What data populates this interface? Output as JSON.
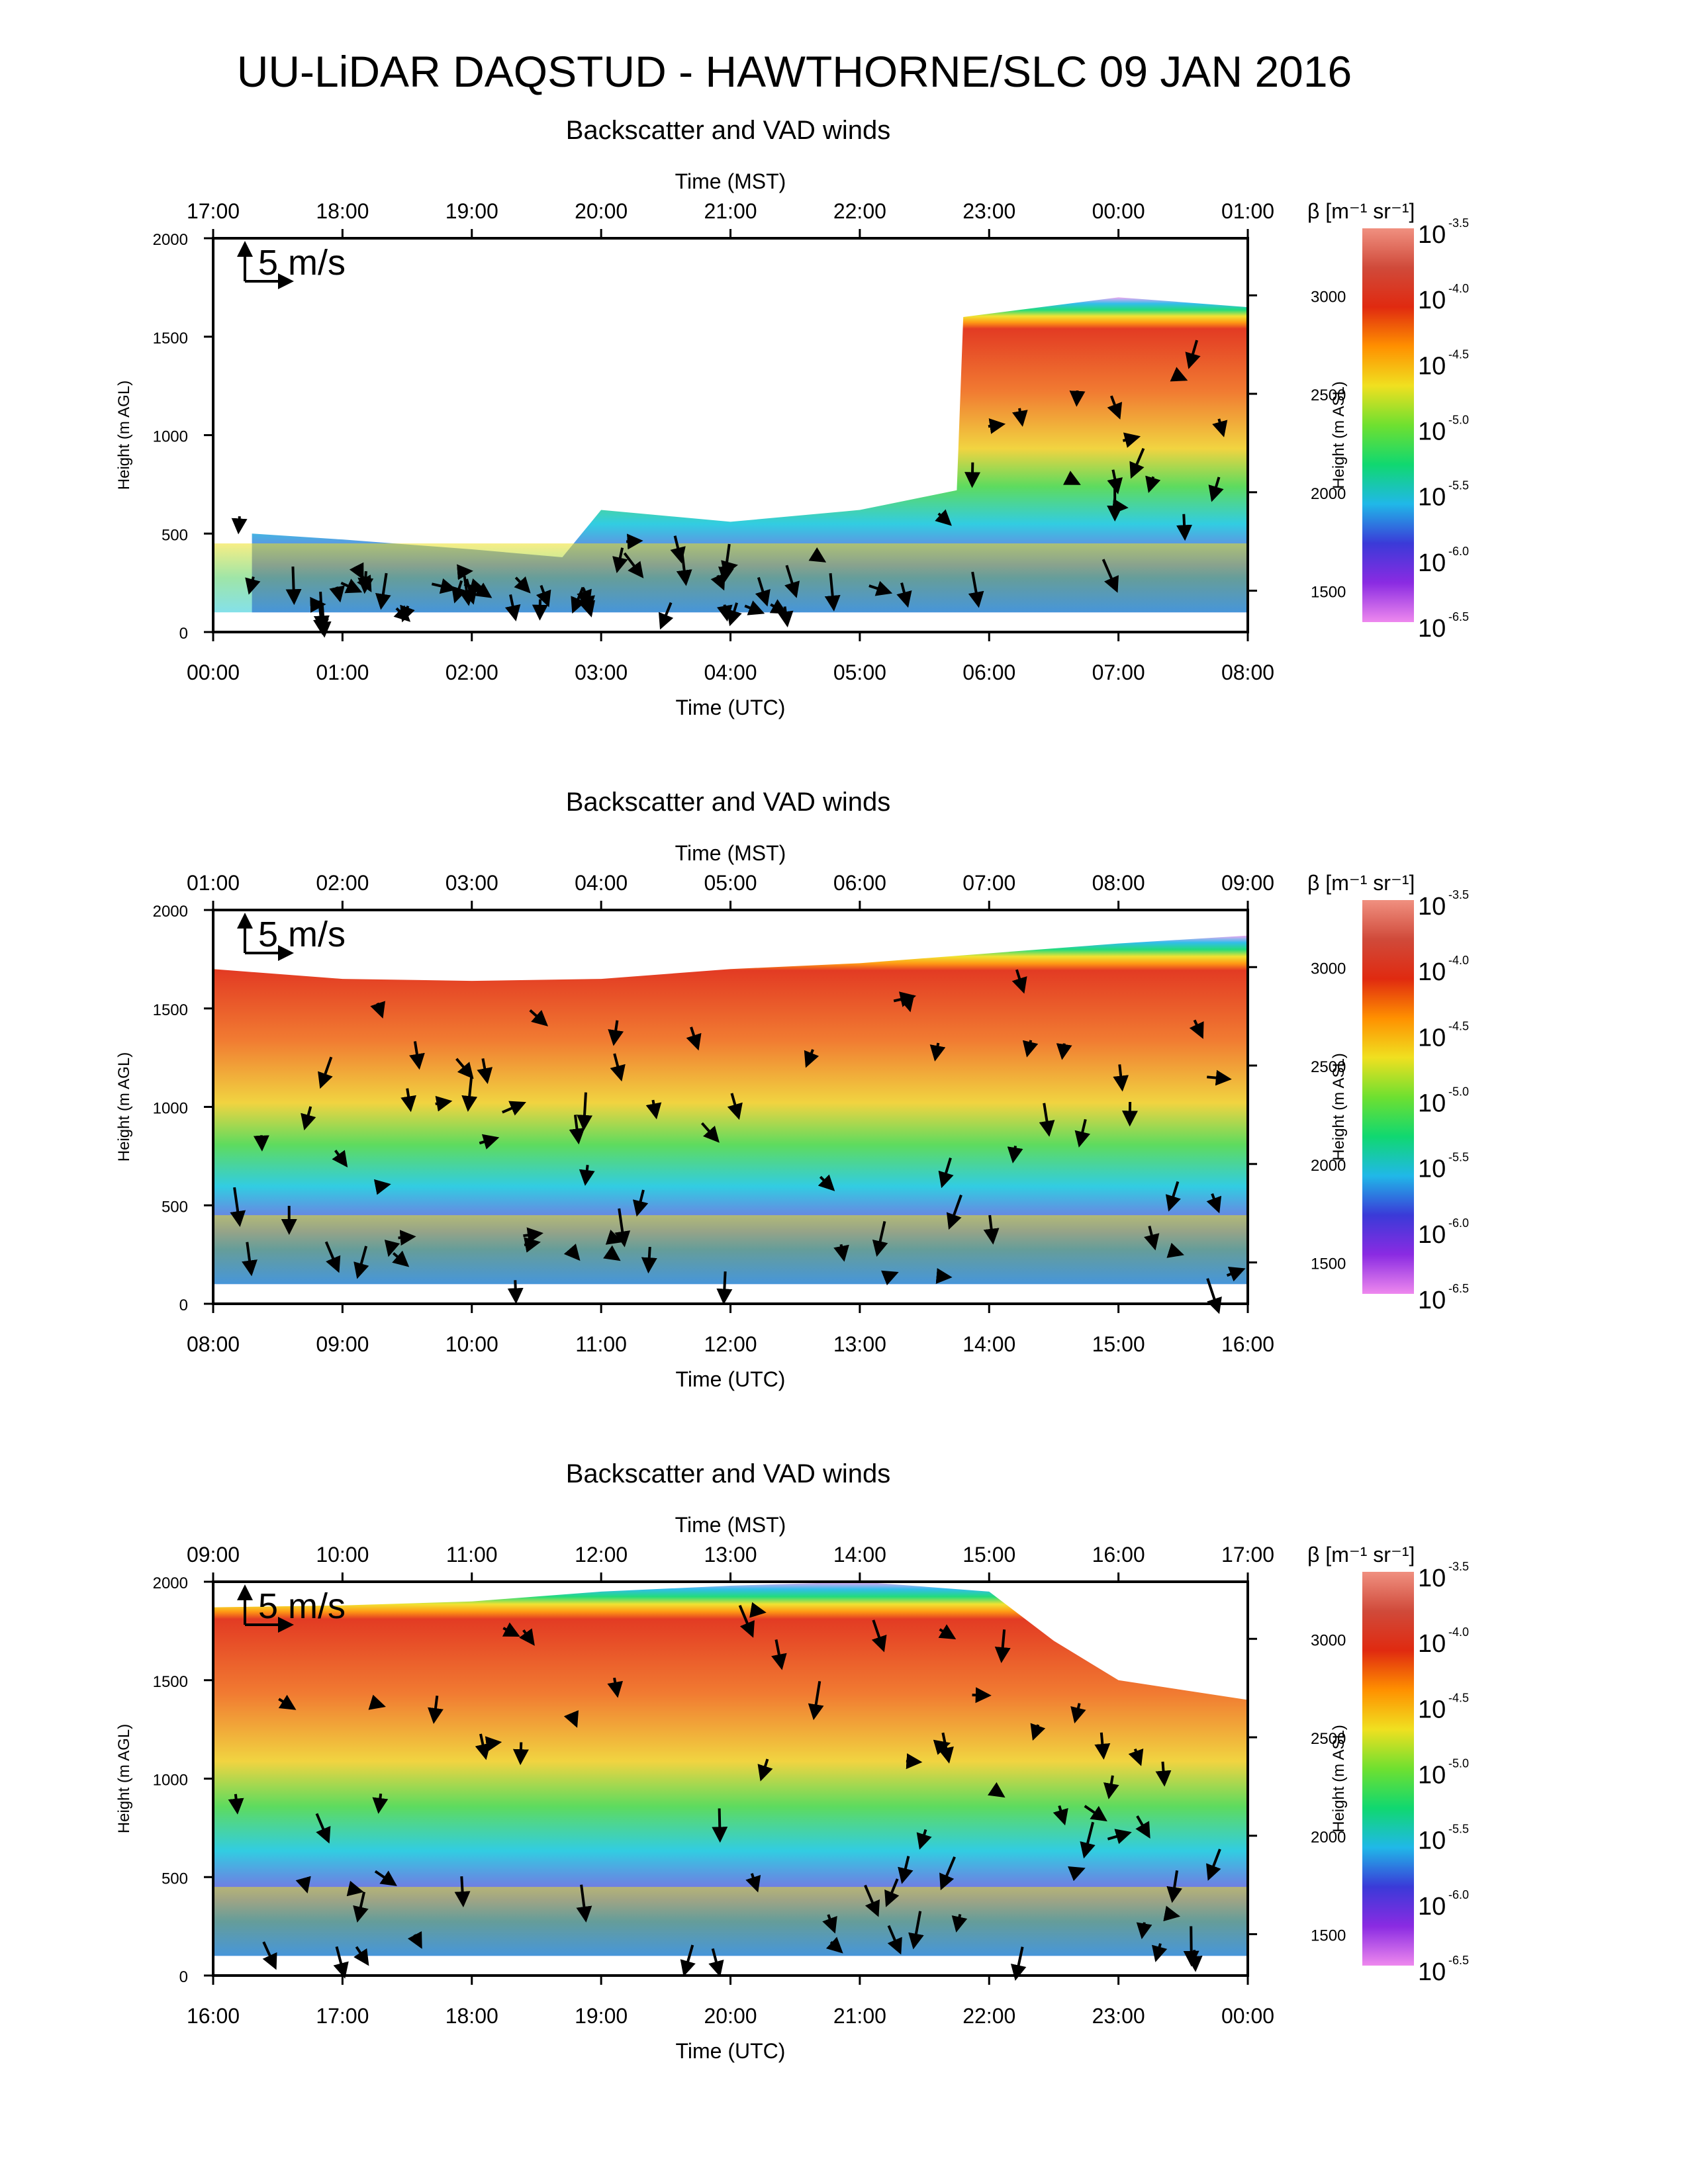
{
  "figure": {
    "title": "UU-LiDAR DAQSTUD - HAWTHORNE/SLC 09 JAN 2016"
  },
  "colors": {
    "colormap": [
      "#ee88ee",
      "#8a2be2",
      "#3a3ad8",
      "#20b8e8",
      "#10d870",
      "#6fe030",
      "#f0e020",
      "#ff9000",
      "#e02a10",
      "#d04a3a",
      "#f09080"
    ],
    "wind_arrow": "#000000"
  },
  "chart_data": [
    {
      "type": "heatmap",
      "title": "Backscatter and VAD winds",
      "top_axis_label": "Time (MST)",
      "top_ticks": [
        "17:00",
        "18:00",
        "19:00",
        "20:00",
        "21:00",
        "22:00",
        "23:00",
        "00:00",
        "01:00"
      ],
      "xlabel": "Time (UTC)",
      "x_ticks": [
        "00:00",
        "01:00",
        "02:00",
        "03:00",
        "04:00",
        "05:00",
        "06:00",
        "07:00",
        "08:00"
      ],
      "xlim_hours_utc": [
        0,
        8
      ],
      "ylabel": "Height (m AGL)",
      "y_ticks": [
        0,
        500,
        1000,
        1500,
        2000
      ],
      "ylim": [
        0,
        2000
      ],
      "ylabel_right": "Height (m ASL)",
      "y_ticks_right": [
        1500,
        2000,
        2500,
        3000
      ],
      "scale_arrow_label": "5 m/s",
      "colorbar": {
        "label": "β [m⁻¹ sr⁻¹]",
        "ticks": [
          "-3.5",
          "-4.0",
          "-4.5",
          "-5.0",
          "-5.5",
          "-6.0",
          "-6.5"
        ],
        "base": "10"
      },
      "layer_top_m_agl": [
        [
          0.3,
          500
        ],
        [
          1.0,
          470
        ],
        [
          2.0,
          420
        ],
        [
          2.7,
          380
        ],
        [
          3.0,
          620
        ],
        [
          4.0,
          560
        ],
        [
          5.0,
          620
        ],
        [
          5.75,
          720
        ],
        [
          5.8,
          1600
        ],
        [
          7.0,
          1700
        ],
        [
          8.0,
          1650
        ]
      ]
    },
    {
      "type": "heatmap",
      "title": "Backscatter and VAD winds",
      "top_axis_label": "Time (MST)",
      "top_ticks": [
        "01:00",
        "02:00",
        "03:00",
        "04:00",
        "05:00",
        "06:00",
        "07:00",
        "08:00",
        "09:00"
      ],
      "xlabel": "Time (UTC)",
      "x_ticks": [
        "08:00",
        "09:00",
        "10:00",
        "11:00",
        "12:00",
        "13:00",
        "14:00",
        "15:00",
        "16:00"
      ],
      "xlim_hours_utc": [
        8,
        16
      ],
      "ylabel": "Height (m AGL)",
      "y_ticks": [
        0,
        500,
        1000,
        1500,
        2000
      ],
      "ylim": [
        0,
        2000
      ],
      "ylabel_right": "Height (m ASL)",
      "y_ticks_right": [
        1500,
        2000,
        2500,
        3000
      ],
      "scale_arrow_label": "5 m/s",
      "colorbar": {
        "label": "β [m⁻¹ sr⁻¹]",
        "ticks": [
          "-3.5",
          "-4.0",
          "-4.5",
          "-5.0",
          "-5.5",
          "-6.0",
          "-6.5"
        ],
        "base": "10"
      },
      "layer_top_m_agl": [
        [
          8.0,
          1700
        ],
        [
          9.0,
          1650
        ],
        [
          10.0,
          1640
        ],
        [
          11.0,
          1650
        ],
        [
          12.0,
          1700
        ],
        [
          13.0,
          1730
        ],
        [
          14.0,
          1780
        ],
        [
          15.0,
          1830
        ],
        [
          16.0,
          1870
        ]
      ]
    },
    {
      "type": "heatmap",
      "title": "Backscatter and VAD winds",
      "top_axis_label": "Time (MST)",
      "top_ticks": [
        "09:00",
        "10:00",
        "11:00",
        "12:00",
        "13:00",
        "14:00",
        "15:00",
        "16:00",
        "17:00"
      ],
      "xlabel": "Time (UTC)",
      "x_ticks": [
        "16:00",
        "17:00",
        "18:00",
        "19:00",
        "20:00",
        "21:00",
        "22:00",
        "23:00",
        "00:00"
      ],
      "xlim_hours_utc": [
        16,
        24
      ],
      "ylabel": "Height (m AGL)",
      "y_ticks": [
        0,
        500,
        1000,
        1500,
        2000
      ],
      "ylim": [
        0,
        2000
      ],
      "ylabel_right": "Height (m ASL)",
      "y_ticks_right": [
        1500,
        2000,
        2500,
        3000
      ],
      "scale_arrow_label": "5 m/s",
      "colorbar": {
        "label": "β [m⁻¹ sr⁻¹]",
        "ticks": [
          "-3.5",
          "-4.0",
          "-4.5",
          "-5.0",
          "-5.5",
          "-6.0",
          "-6.5"
        ],
        "base": "10"
      },
      "layer_top_m_agl": [
        [
          16.0,
          1870
        ],
        [
          17.0,
          1880
        ],
        [
          18.0,
          1900
        ],
        [
          19.0,
          1950
        ],
        [
          20.0,
          1980
        ],
        [
          21.0,
          2000
        ],
        [
          22.0,
          1950
        ],
        [
          22.5,
          1700
        ],
        [
          23.0,
          1500
        ],
        [
          24.0,
          1400
        ]
      ]
    }
  ]
}
